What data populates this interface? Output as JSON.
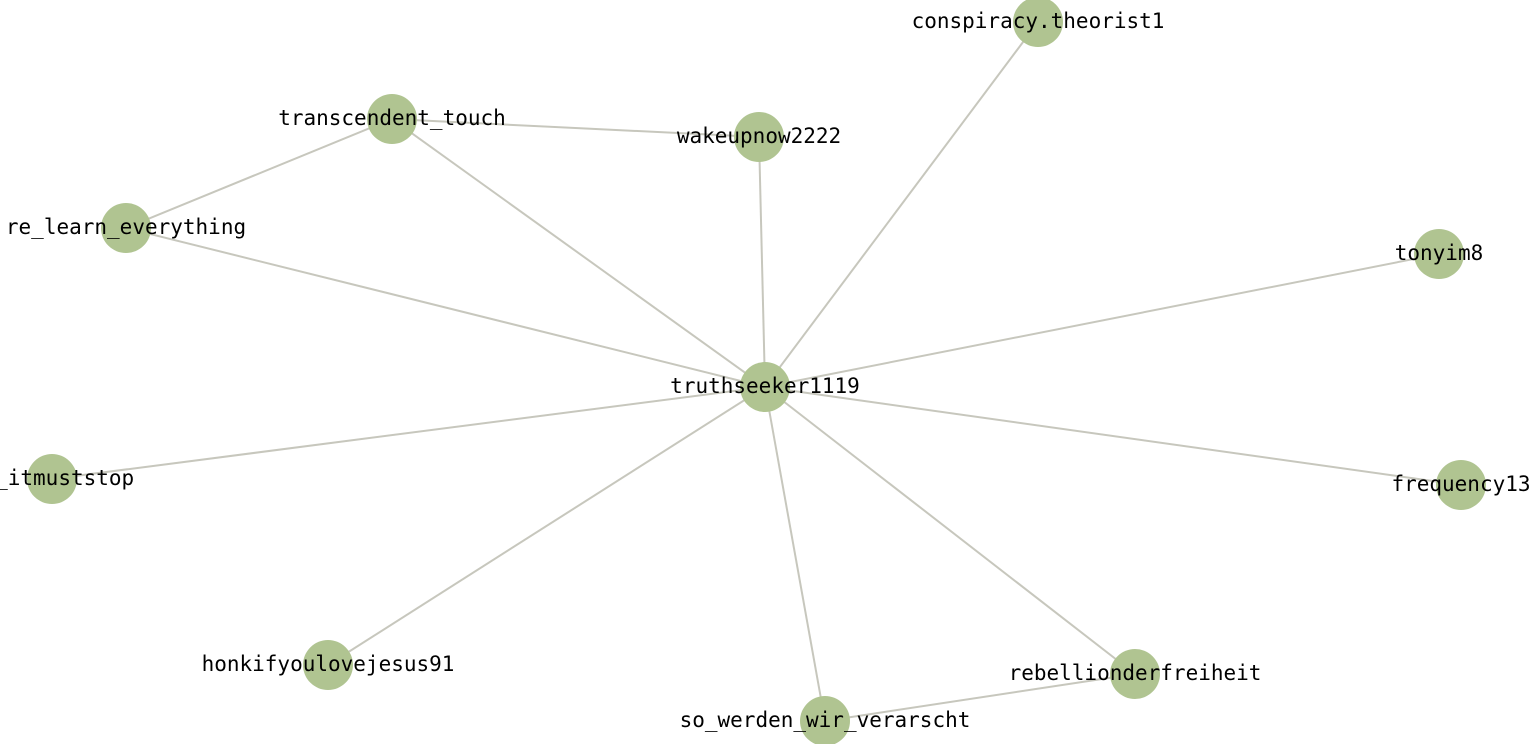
{
  "graph": {
    "node_color": "#b0c491",
    "edge_color": "#c7c7bd",
    "label_color": "#000000",
    "nodes": [
      {
        "id": "truthseeker1119",
        "label": "truthseeker1119"
      },
      {
        "id": "conspiracy.theorist1",
        "label": "conspiracy.theorist1"
      },
      {
        "id": "transcendent_touch",
        "label": "transcendent_touch"
      },
      {
        "id": "wakeupnow2222",
        "label": "wakeupnow2222"
      },
      {
        "id": "re_learn_everything",
        "label": "re_learn_everything"
      },
      {
        "id": "tonyim8",
        "label": "tonyim8"
      },
      {
        "id": "ey_itmuststop",
        "label": "ey_itmuststop"
      },
      {
        "id": "frequency13",
        "label": "frequency13"
      },
      {
        "id": "honkifyoulovejesus91",
        "label": "honkifyoulovejesus91"
      },
      {
        "id": "rebellionderfreiheit",
        "label": "rebellionderfreiheit"
      },
      {
        "id": "so_werden_wir_verarscht",
        "label": "so_werden_wir_verarscht"
      }
    ],
    "edges": [
      {
        "source": "truthseeker1119",
        "target": "conspiracy.theorist1"
      },
      {
        "source": "truthseeker1119",
        "target": "transcendent_touch"
      },
      {
        "source": "truthseeker1119",
        "target": "wakeupnow2222"
      },
      {
        "source": "truthseeker1119",
        "target": "re_learn_everything"
      },
      {
        "source": "truthseeker1119",
        "target": "tonyim8"
      },
      {
        "source": "truthseeker1119",
        "target": "ey_itmuststop"
      },
      {
        "source": "truthseeker1119",
        "target": "frequency13"
      },
      {
        "source": "truthseeker1119",
        "target": "honkifyoulovejesus91"
      },
      {
        "source": "truthseeker1119",
        "target": "rebellionderfreiheit"
      },
      {
        "source": "truthseeker1119",
        "target": "so_werden_wir_verarscht"
      },
      {
        "source": "transcendent_touch",
        "target": "wakeupnow2222"
      },
      {
        "source": "transcendent_touch",
        "target": "re_learn_everything"
      },
      {
        "source": "rebellionderfreiheit",
        "target": "so_werden_wir_verarscht"
      }
    ]
  }
}
